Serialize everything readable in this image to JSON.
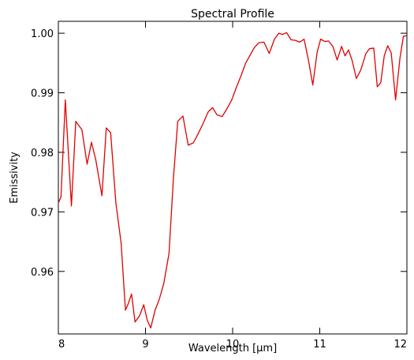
{
  "chart_data": {
    "type": "line",
    "title": "Spectral Profile",
    "xlabel": "Wavelength [μm]",
    "ylabel": "Emissivity",
    "xlim": [
      8,
      12
    ],
    "ylim": [
      0.9495,
      1.002
    ],
    "xticks": [
      8,
      9,
      10,
      11,
      12
    ],
    "xtick_labels": [
      "8",
      "9",
      "10",
      "11",
      "12"
    ],
    "yticks": [
      0.96,
      0.97,
      0.98,
      0.99,
      1.0
    ],
    "ytick_labels": [
      "0.96",
      "0.97",
      "0.98",
      "0.99",
      "1.00"
    ],
    "grid": false,
    "line_color": "#e00000",
    "series": [
      {
        "x": [
          8.0,
          8.03,
          8.08,
          8.15,
          8.2,
          8.27,
          8.33,
          8.38,
          8.43,
          8.5,
          8.55,
          8.6,
          8.66,
          8.72,
          8.77,
          8.8,
          8.84,
          8.88,
          8.93,
          8.98,
          9.02,
          9.06,
          9.11,
          9.16,
          9.21,
          9.27,
          9.32,
          9.37,
          9.43,
          9.49,
          9.55,
          9.6,
          9.66,
          9.72,
          9.77,
          9.82,
          9.88,
          9.93,
          9.99,
          10.04,
          10.1,
          10.15,
          10.2,
          10.25,
          10.3,
          10.36,
          10.42,
          10.48,
          10.53,
          10.57,
          10.62,
          10.67,
          10.72,
          10.77,
          10.82,
          10.87,
          10.92,
          10.97,
          11.01,
          11.06,
          11.1,
          11.15,
          11.2,
          11.25,
          11.29,
          11.33,
          11.37,
          11.42,
          11.47,
          11.53,
          11.57,
          11.62,
          11.66,
          11.7,
          11.74,
          11.78,
          11.82,
          11.87,
          11.92,
          11.96,
          12.0
        ],
        "y": [
          0.9715,
          0.9725,
          0.9888,
          0.971,
          0.9852,
          0.9838,
          0.978,
          0.9817,
          0.9787,
          0.9727,
          0.9841,
          0.9833,
          0.9715,
          0.9648,
          0.9535,
          0.9545,
          0.9562,
          0.9515,
          0.9525,
          0.9544,
          0.9518,
          0.9505,
          0.9535,
          0.9554,
          0.958,
          0.963,
          0.9755,
          0.9852,
          0.9861,
          0.9812,
          0.9816,
          0.983,
          0.9848,
          0.9868,
          0.9875,
          0.9863,
          0.986,
          0.9872,
          0.9888,
          0.9908,
          0.993,
          0.995,
          0.9963,
          0.9976,
          0.9984,
          0.9985,
          0.9966,
          0.999,
          1.0,
          0.9998,
          1.0001,
          0.9989,
          0.9988,
          0.9985,
          0.999,
          0.9955,
          0.9913,
          0.9968,
          0.999,
          0.9986,
          0.9987,
          0.9978,
          0.9955,
          0.9978,
          0.9962,
          0.9972,
          0.9955,
          0.9924,
          0.9938,
          0.9966,
          0.9974,
          0.9975,
          0.991,
          0.9917,
          0.9962,
          0.9979,
          0.9967,
          0.9888,
          0.9958,
          0.9995,
          0.9996
        ]
      }
    ]
  }
}
